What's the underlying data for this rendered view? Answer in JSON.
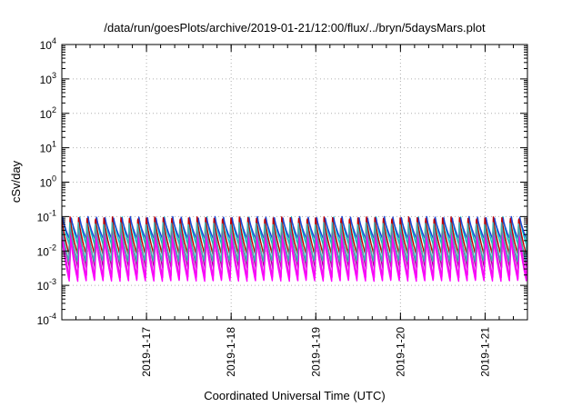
{
  "chart_data": {
    "type": "line",
    "title": "/data/run/goesPlots/archive/2019-01-21/12:00/flux/../bryn/5daysMars.plot",
    "xlabel": "Coordinated Universal Time (UTC)",
    "ylabel": "cSv/day",
    "yscale": "log",
    "ylim": [
      0.0001,
      10000
    ],
    "y_tick_labels": [
      {
        "base": "10",
        "exp": "-4"
      },
      {
        "base": "10",
        "exp": "-3"
      },
      {
        "base": "10",
        "exp": "-2"
      },
      {
        "base": "10",
        "exp": "-1"
      },
      {
        "base": "10",
        "exp": "0"
      },
      {
        "base": "10",
        "exp": "1"
      },
      {
        "base": "10",
        "exp": "2"
      },
      {
        "base": "10",
        "exp": "3"
      },
      {
        "base": "10",
        "exp": "4"
      }
    ],
    "x_tick_labels": [
      "2019-1-17",
      "2019-1-18",
      "2019-1-19",
      "2019-1-20",
      "2019-1-21"
    ],
    "xlim": [
      "2019-01-16T00:00",
      "2019-01-21T12:00"
    ],
    "grid": true,
    "legend": "none",
    "pulse_period_hours": 2.4,
    "series_colors": [
      "#00bfbf",
      "#1f3fd8",
      "#8b1a8b",
      "#e020e0",
      "#ff00ff",
      "#c00000",
      "#3fb0b0"
    ],
    "series_envelope": [
      {
        "color": "#00bfbf",
        "peak": 0.1,
        "trough": 0.012
      },
      {
        "color": "#1f3fd8",
        "peak": 0.1,
        "trough": 0.02
      },
      {
        "color": "#8b1a8b",
        "peak": 0.06,
        "trough": 0.003
      },
      {
        "color": "#e020e0",
        "peak": 0.045,
        "trough": 0.0017
      },
      {
        "color": "#ff00ff",
        "peak": 0.03,
        "trough": 0.0013
      },
      {
        "color": "#c00000",
        "peak": 0.1,
        "trough": 0.008
      },
      {
        "color": "#3fb0b0",
        "peak": 0.07,
        "trough": 0.005
      }
    ]
  }
}
